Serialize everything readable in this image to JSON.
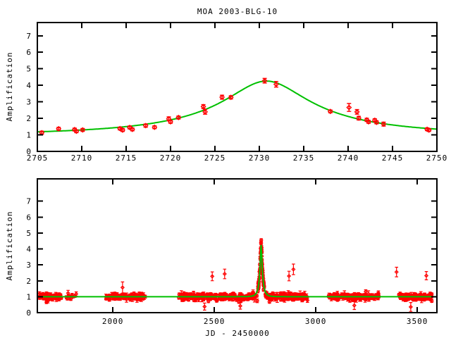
{
  "title": "MOA 2003-BLG-10",
  "colors": {
    "data_points": "#ff0000",
    "model_curve": "#00c000",
    "frame": "#000000",
    "background": "#ffffff"
  },
  "chart_data": [
    {
      "panel": "top-zoom",
      "type": "scatter",
      "title": "MOA 2003-BLG-10",
      "xlabel": "",
      "ylabel": "Amplification",
      "xlim": [
        2705,
        2750
      ],
      "ylim": [
        0,
        7.8
      ],
      "xticks": [
        2705,
        2710,
        2715,
        2720,
        2725,
        2730,
        2735,
        2740,
        2745,
        2750
      ],
      "yticks": [
        0,
        1,
        2,
        3,
        4,
        5,
        6,
        7
      ],
      "grid": false,
      "legend": "none",
      "model": {
        "type": "paczynski",
        "t0": 2730.8,
        "u0": 0.24,
        "tE": 20,
        "baseline": 1.0
      },
      "points_format": [
        "jd_minus_2450000",
        "amplification",
        "error"
      ],
      "points": [
        [
          2705.5,
          1.13,
          0.1
        ],
        [
          2707.4,
          1.37,
          0.09
        ],
        [
          2709.2,
          1.32,
          0.07
        ],
        [
          2709.4,
          1.22,
          0.07
        ],
        [
          2710.1,
          1.3,
          0.07
        ],
        [
          2714.3,
          1.38,
          0.07
        ],
        [
          2714.6,
          1.29,
          0.06
        ],
        [
          2715.4,
          1.45,
          0.08
        ],
        [
          2715.7,
          1.33,
          0.07
        ],
        [
          2717.2,
          1.56,
          0.1
        ],
        [
          2718.2,
          1.46,
          0.07
        ],
        [
          2719.8,
          1.97,
          0.12
        ],
        [
          2720.0,
          1.79,
          0.09
        ],
        [
          2720.9,
          2.05,
          0.09
        ],
        [
          2723.7,
          2.71,
          0.12
        ],
        [
          2723.9,
          2.39,
          0.14
        ],
        [
          2725.8,
          3.28,
          0.12
        ],
        [
          2726.8,
          3.27,
          0.1
        ],
        [
          2730.6,
          4.28,
          0.14
        ],
        [
          2731.9,
          4.06,
          0.17
        ],
        [
          2738.0,
          2.42,
          0.07
        ],
        [
          2740.1,
          2.66,
          0.24
        ],
        [
          2741.0,
          2.39,
          0.14
        ],
        [
          2741.2,
          2.01,
          0.11
        ],
        [
          2742.1,
          1.91,
          0.1
        ],
        [
          2742.3,
          1.79,
          0.09
        ],
        [
          2743.0,
          1.89,
          0.09
        ],
        [
          2743.2,
          1.76,
          0.09
        ],
        [
          2744.0,
          1.65,
          0.12
        ],
        [
          2748.9,
          1.34,
          0.07
        ],
        [
          2749.1,
          1.29,
          0.07
        ]
      ]
    },
    {
      "panel": "bottom-full",
      "type": "scatter",
      "title": "",
      "xlabel": "JD - 2450000",
      "ylabel": "Amplification",
      "xlim": [
        1628,
        3597
      ],
      "ylim": [
        0,
        8.4
      ],
      "xticks": [
        2000,
        2500,
        3000,
        3500
      ],
      "yticks": [
        0,
        1,
        2,
        3,
        4,
        5,
        6,
        7
      ],
      "grid": false,
      "legend": "none",
      "model": {
        "type": "paczynski",
        "t0": 2730.8,
        "u0": 0.24,
        "tE": 20,
        "baseline": 1.0
      },
      "baseline_scatter": {
        "mean": 1.0,
        "sd": 0.09,
        "err_min": 0.05,
        "err_max": 0.2
      },
      "noise_seed": 11,
      "clusters": [
        {
          "x0": 1635,
          "x1": 1695,
          "n": 45
        },
        {
          "x0": 1700,
          "x1": 1748,
          "n": 35
        },
        {
          "x0": 1770,
          "x1": 1822,
          "n": 16
        },
        {
          "x0": 1965,
          "x1": 2160,
          "n": 120
        },
        {
          "x0": 2325,
          "x1": 2712,
          "n": 230,
          "sd": 0.11
        },
        {
          "x0": 2714,
          "x1": 2748,
          "n": 70,
          "follow_model": true
        },
        {
          "x0": 2750,
          "x1": 2960,
          "n": 150,
          "sd": 0.11
        },
        {
          "x0": 3062,
          "x1": 3312,
          "n": 165
        },
        {
          "x0": 3408,
          "x1": 3572,
          "n": 130
        }
      ],
      "outliers": [
        [
          2048,
          1.58,
          0.35
        ],
        [
          2452,
          0.38,
          0.22
        ],
        [
          2490,
          2.28,
          0.28
        ],
        [
          2551,
          2.43,
          0.3
        ],
        [
          2628,
          0.42,
          0.2
        ],
        [
          2868,
          2.3,
          0.3
        ],
        [
          2890,
          2.72,
          0.33
        ],
        [
          3190,
          0.45,
          0.25
        ],
        [
          3398,
          2.55,
          0.3
        ],
        [
          3468,
          0.36,
          0.28
        ],
        [
          3545,
          2.32,
          0.26
        ]
      ]
    }
  ]
}
